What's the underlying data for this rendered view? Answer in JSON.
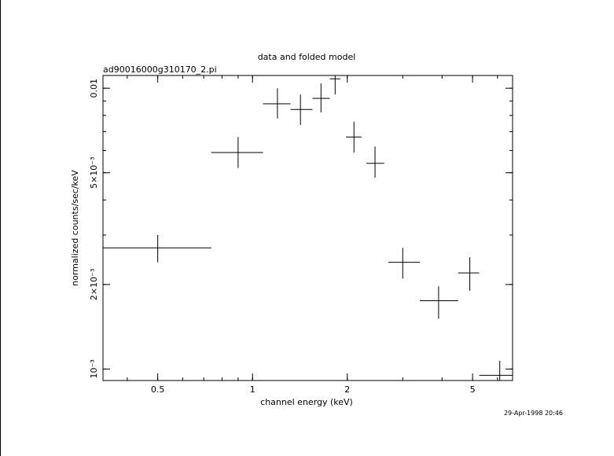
{
  "chart_data": {
    "type": "scatter",
    "title": "data and folded model",
    "subtitle": "ad90016000g310170_2.pi",
    "xlabel": "channel energy (keV)",
    "ylabel": "normalized counts/sec/keV",
    "timestamp": "29-Apr-1998 20:46",
    "x_scale": "log",
    "y_scale": "log",
    "xlim": [
      0.335,
      6.7
    ],
    "ylim": [
      0.00091,
      0.0111
    ],
    "x_ticks": [
      {
        "value": 0.5,
        "label": "0.5"
      },
      {
        "value": 1,
        "label": "1"
      },
      {
        "value": 2,
        "label": "2"
      },
      {
        "value": 5,
        "label": "5"
      }
    ],
    "y_ticks": [
      {
        "value": 0.01,
        "label": "0.01"
      },
      {
        "value": 0.005,
        "label": "5×10⁻³"
      },
      {
        "value": 0.002,
        "label": "2×10⁻³"
      },
      {
        "value": 0.001,
        "label": "10⁻³"
      }
    ],
    "series": [
      {
        "points": [
          {
            "x": 0.5,
            "xlo": 0.335,
            "xhi": 0.74,
            "y": 0.0027,
            "ylo": 0.0024,
            "yhi": 0.003
          },
          {
            "x": 0.9,
            "xlo": 0.74,
            "xhi": 1.08,
            "y": 0.0059,
            "ylo": 0.0052,
            "yhi": 0.0067
          },
          {
            "x": 1.2,
            "xlo": 1.08,
            "xhi": 1.32,
            "y": 0.0088,
            "ylo": 0.0078,
            "yhi": 0.01
          },
          {
            "x": 1.42,
            "xlo": 1.32,
            "xhi": 1.55,
            "y": 0.0084,
            "ylo": 0.0074,
            "yhi": 0.0095
          },
          {
            "x": 1.65,
            "xlo": 1.55,
            "xhi": 1.76,
            "y": 0.0092,
            "ylo": 0.0082,
            "yhi": 0.0104
          },
          {
            "x": 1.83,
            "xlo": 1.76,
            "xhi": 1.9,
            "y": 0.0108,
            "ylo": 0.0095,
            "yhi": 0.0111
          },
          {
            "x": 2.1,
            "xlo": 1.98,
            "xhi": 2.22,
            "y": 0.0067,
            "ylo": 0.0059,
            "yhi": 0.0076
          },
          {
            "x": 2.45,
            "xlo": 2.3,
            "xhi": 2.62,
            "y": 0.0054,
            "ylo": 0.0048,
            "yhi": 0.0062
          },
          {
            "x": 3.0,
            "xlo": 2.7,
            "xhi": 3.4,
            "y": 0.0024,
            "ylo": 0.0021,
            "yhi": 0.0027
          },
          {
            "x": 3.9,
            "xlo": 3.4,
            "xhi": 4.5,
            "y": 0.00175,
            "ylo": 0.00151,
            "yhi": 0.00197
          },
          {
            "x": 4.9,
            "xlo": 4.5,
            "xhi": 5.25,
            "y": 0.0022,
            "ylo": 0.0019,
            "yhi": 0.0025
          },
          {
            "x": 6.1,
            "xlo": 5.25,
            "xhi": 6.7,
            "y": 0.00095,
            "ylo": 0.00091,
            "yhi": 0.00107
          }
        ]
      }
    ]
  }
}
